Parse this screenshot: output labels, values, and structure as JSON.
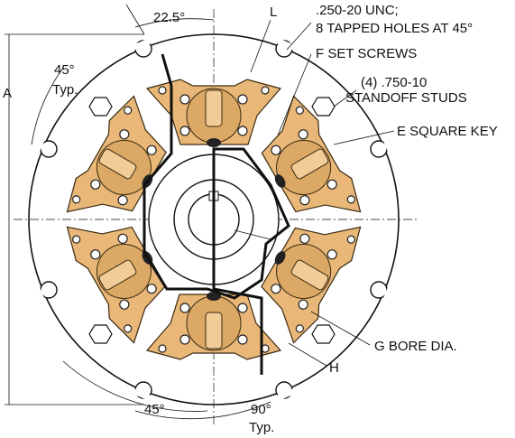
{
  "callouts": {
    "angle_top": "22.5°",
    "l": "L",
    "tapped_1": ".250-20 UNC;",
    "tapped_2": "8 TAPPED HOLES AT 45°",
    "set_screws": "F  SET SCREWS",
    "studs_1": "(4) .750-10",
    "studs_2": "STANDOFF STUDS",
    "angle_left": "45°",
    "angle_left_typ": "Typ.",
    "a": "A",
    "square_key": "E  SQUARE KEY",
    "bore": "G  BORE DIA.",
    "h": "H",
    "angle_bottom": "45°",
    "angle_90": "90°",
    "angle_90_typ": "Typ."
  }
}
